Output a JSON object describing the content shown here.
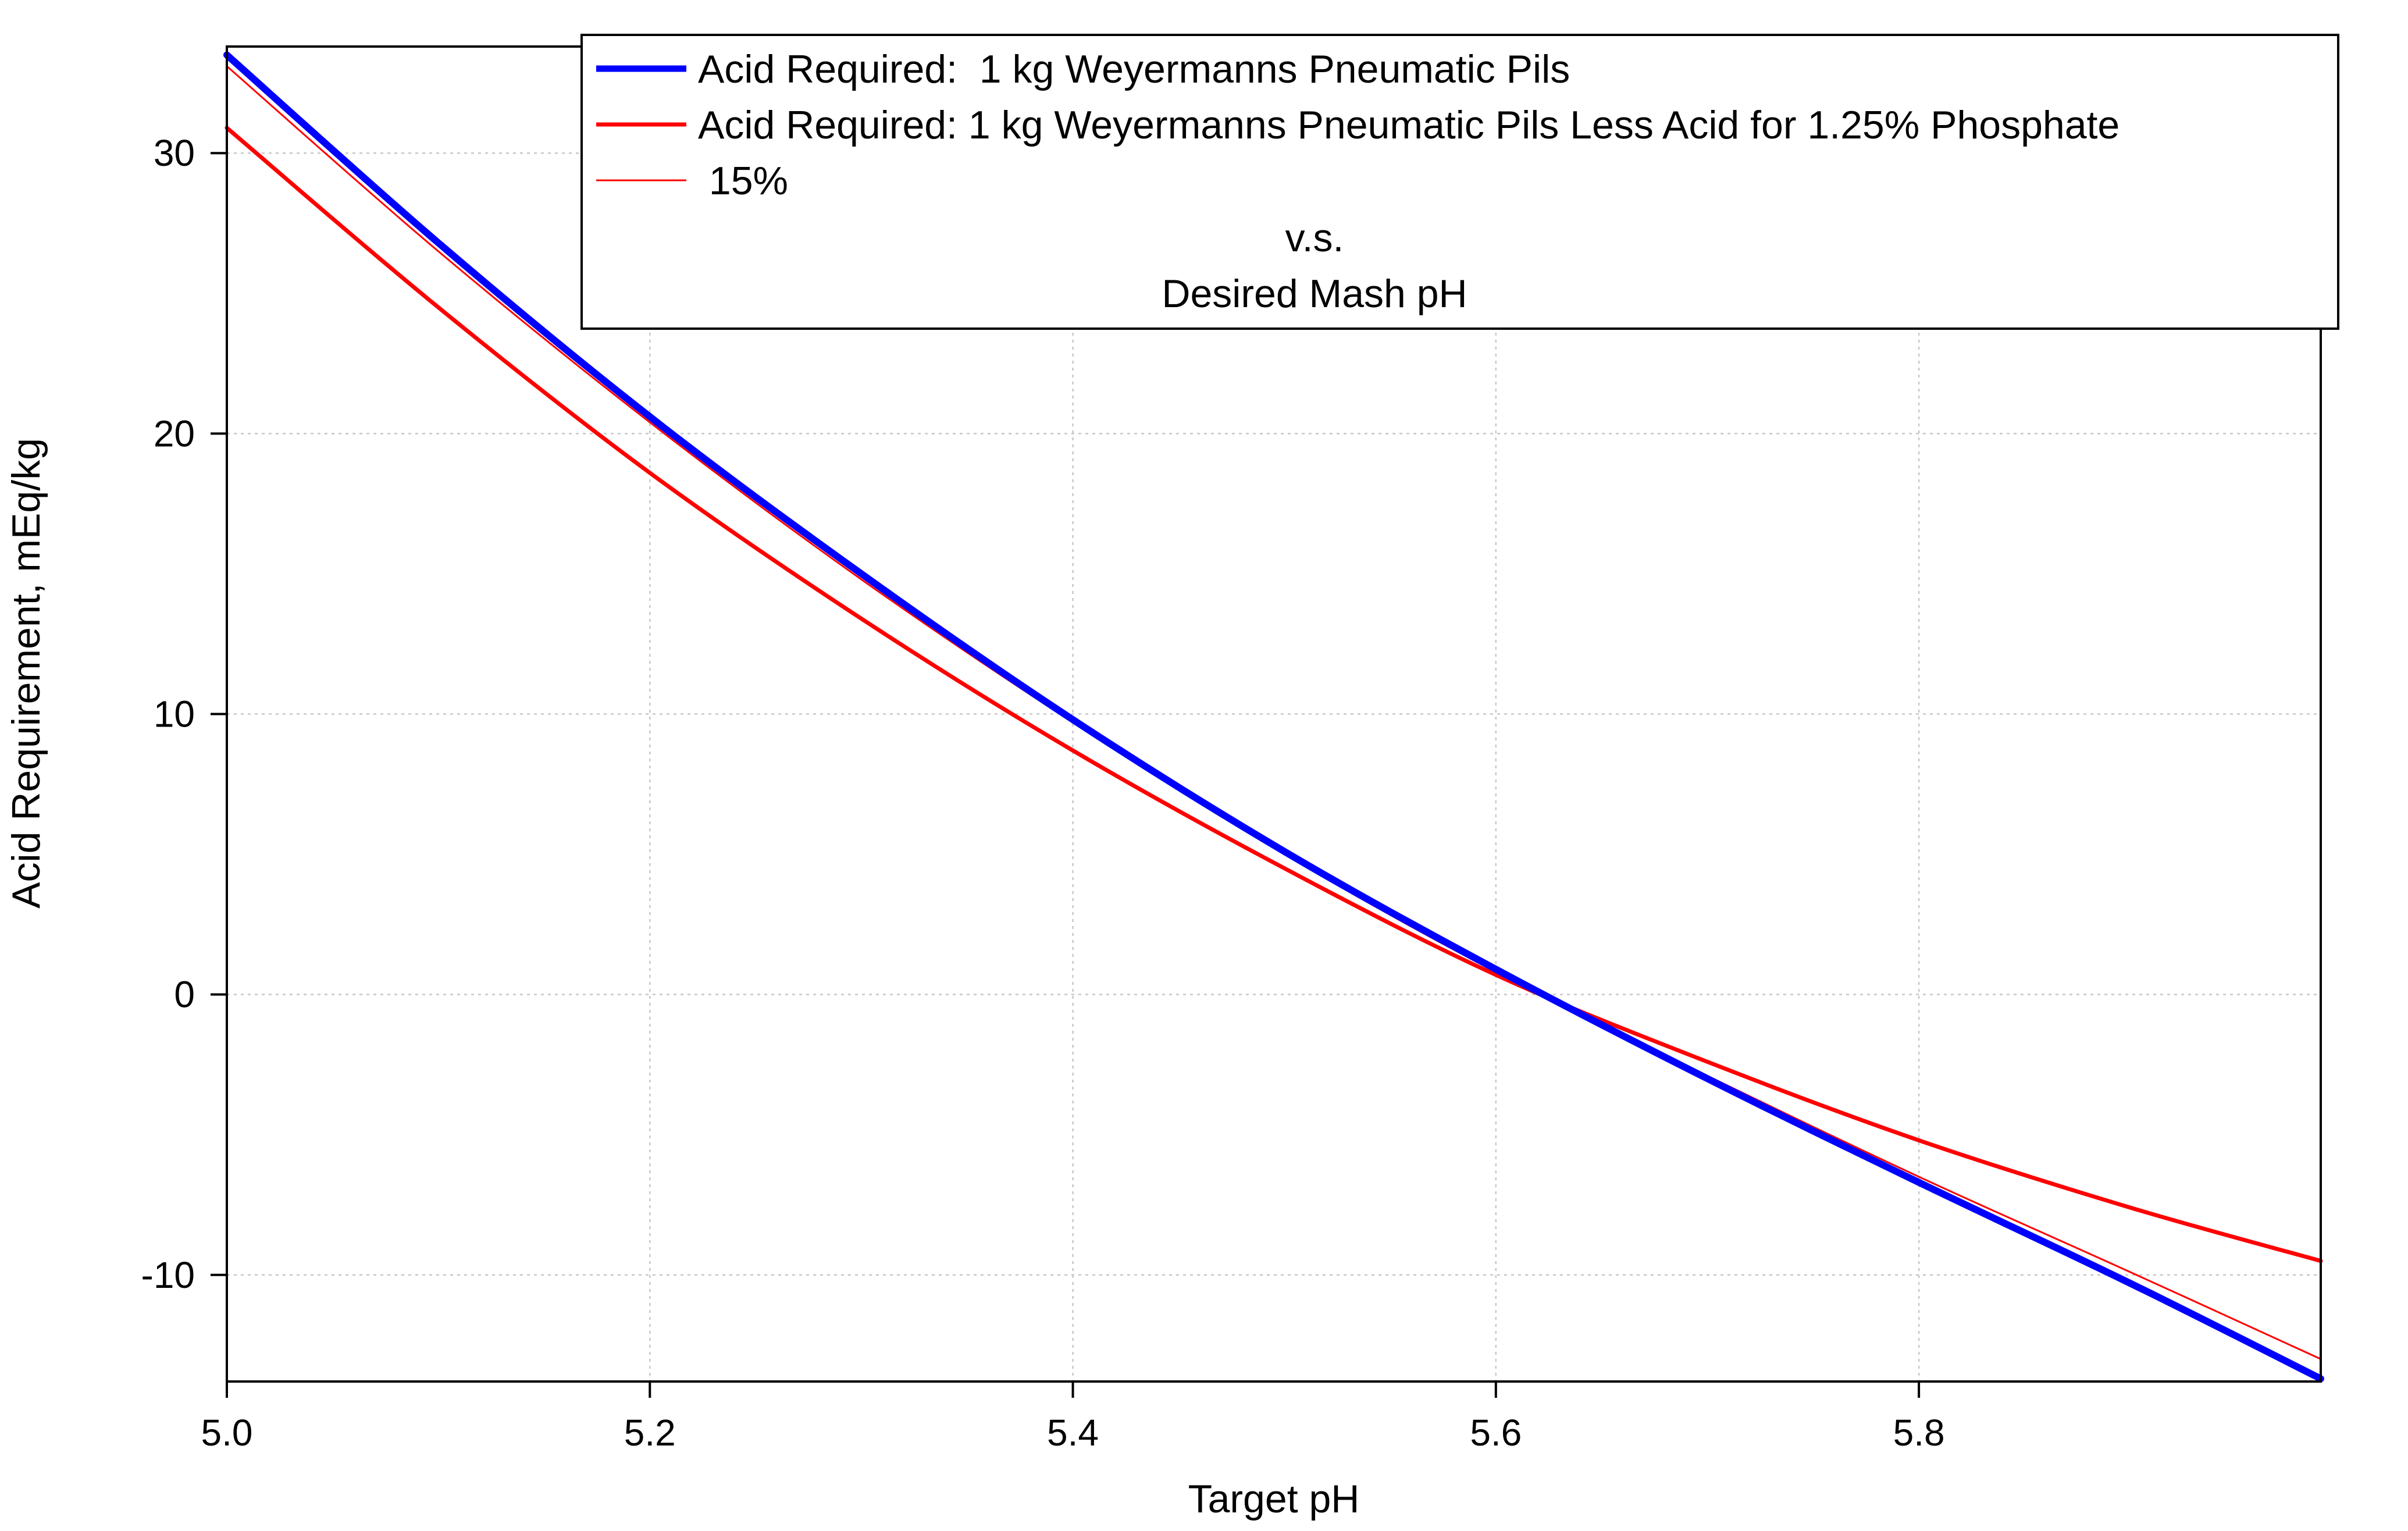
{
  "chart_data": {
    "type": "line",
    "xlabel": "Target pH",
    "ylabel": "Acid Requirement, mEq/kg",
    "xlim": [
      5.0,
      5.99
    ],
    "ylim": [
      -13.8,
      33.8
    ],
    "xticks": [
      5.0,
      5.2,
      5.4,
      5.6,
      5.8
    ],
    "xtick_labels": [
      "5.0",
      "5.2",
      "5.4",
      "5.6",
      "5.8"
    ],
    "yticks": [
      -10,
      0,
      10,
      20,
      30
    ],
    "ytick_labels": [
      "-10",
      "0",
      "10",
      "20",
      "30"
    ],
    "grid": true,
    "legend_position": "top-right",
    "legend": {
      "entries": [
        {
          "label": "Acid Required:  1 kg Weyermanns Pneumatic Pils",
          "color": "#0000ff",
          "style": "thick"
        },
        {
          "label": "Acid Required: 1 kg Weyermanns Pneumatic Pils Less Acid for 1.25% Phosphate",
          "color": "#ff0000",
          "style": "medium"
        },
        {
          "label": " 15%",
          "color": "#ff0000",
          "style": "thin"
        }
      ],
      "caption_lines": [
        "v.s.",
        "Desired Mash pH"
      ]
    },
    "series": [
      {
        "name": "Acid Required:  1 kg Weyermanns Pneumatic Pils",
        "color": "#0000ff",
        "x": [
          5.0,
          5.1,
          5.2,
          5.3,
          5.4,
          5.5,
          5.6,
          5.7,
          5.8,
          5.9,
          5.99
        ],
        "y": [
          33.5,
          26.8,
          20.6,
          15.0,
          9.8,
          5.1,
          0.9,
          -3.0,
          -6.7,
          -10.3,
          -13.7
        ]
      },
      {
        "name": "Acid Required: 1 kg Weyermanns Pneumatic Pils Less Acid for 1.25% Phosphate",
        "color": "#ff0000",
        "x": [
          5.0,
          5.1,
          5.2,
          5.3,
          5.4,
          5.5,
          5.6,
          5.7,
          5.8,
          5.9,
          5.99
        ],
        "y": [
          30.9,
          24.5,
          18.6,
          13.4,
          8.7,
          4.5,
          0.7,
          -2.4,
          -5.2,
          -7.6,
          -9.5
        ]
      },
      {
        "name": "15%",
        "color": "#ff0000",
        "x": [
          5.0,
          5.1,
          5.2,
          5.3,
          5.4,
          5.5,
          5.6,
          5.7,
          5.8,
          5.9,
          5.99
        ],
        "y": [
          33.1,
          26.5,
          20.4,
          14.8,
          9.7,
          5.0,
          0.8,
          -2.9,
          -6.5,
          -9.9,
          -13.0
        ]
      }
    ]
  }
}
